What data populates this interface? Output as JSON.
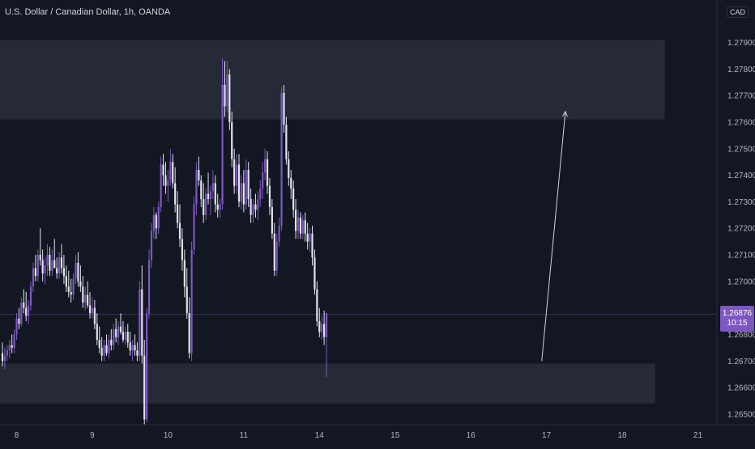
{
  "header": {
    "title": "U.S. Dollar / Canadian Dollar, 1h, OANDA",
    "currency": "CAD"
  },
  "price_badge": {
    "price": "1.26876",
    "countdown": "10:15"
  },
  "colors": {
    "background": "#131722",
    "up": "#7e57c2",
    "down": "#e0e3eb",
    "zone": "#2a2e39",
    "axis_text": "#b2b5be",
    "arrow": "#d1d4dc"
  },
  "chart_data": {
    "type": "candlestick",
    "title": "U.S. Dollar / Canadian Dollar, 1h, OANDA",
    "y_axis": {
      "ticks": [
        "1.26500",
        "1.26600",
        "1.26700",
        "1.26800",
        "1.27000",
        "1.27100",
        "1.27200",
        "1.27300",
        "1.27400",
        "1.27500",
        "1.27600",
        "1.27700",
        "1.27800",
        "1.27900"
      ],
      "tick_values": [
        1.265,
        1.266,
        1.267,
        1.268,
        1.27,
        1.271,
        1.272,
        1.273,
        1.274,
        1.275,
        1.276,
        1.277,
        1.278,
        1.279
      ],
      "range": [
        1.2646,
        1.2806
      ]
    },
    "x_axis": {
      "labels": [
        "8",
        "9",
        "10",
        "11",
        "14",
        "15",
        "16",
        "17",
        "18",
        "21"
      ],
      "label_index": [
        6,
        38,
        70,
        102,
        134,
        166,
        198,
        230,
        262,
        294
      ]
    },
    "zones": [
      {
        "low": 1.2761,
        "high": 1.2791,
        "end_index": 280
      },
      {
        "low": 1.2654,
        "high": 1.2669,
        "end_index": 276
      }
    ],
    "arrow": {
      "from": {
        "index": 228,
        "price": 1.267
      },
      "to": {
        "index": 238,
        "price": 1.2764
      }
    },
    "current_price": 1.26876,
    "candles": [
      [
        1.2673,
        1.2677,
        1.2668,
        1.267
      ],
      [
        1.267,
        1.2675,
        1.2667,
        1.2672
      ],
      [
        1.2672,
        1.2676,
        1.267,
        1.2674
      ],
      [
        1.2674,
        1.2678,
        1.2671,
        1.2676
      ],
      [
        1.2676,
        1.268,
        1.2673,
        1.2675
      ],
      [
        1.2675,
        1.2682,
        1.2673,
        1.268
      ],
      [
        1.268,
        1.2688,
        1.2678,
        1.2686
      ],
      [
        1.2686,
        1.269,
        1.2682,
        1.2684
      ],
      [
        1.2684,
        1.2694,
        1.2683,
        1.2692
      ],
      [
        1.2692,
        1.2697,
        1.2688,
        1.269
      ],
      [
        1.269,
        1.2696,
        1.2685,
        1.2687
      ],
      [
        1.2687,
        1.2693,
        1.2684,
        1.2691
      ],
      [
        1.2691,
        1.27,
        1.2689,
        1.2698
      ],
      [
        1.2698,
        1.2707,
        1.2696,
        1.2705
      ],
      [
        1.2705,
        1.271,
        1.27,
        1.2702
      ],
      [
        1.2702,
        1.2712,
        1.27,
        1.271
      ],
      [
        1.271,
        1.272,
        1.2706,
        1.2708
      ],
      [
        1.2708,
        1.2712,
        1.27,
        1.2703
      ],
      [
        1.2703,
        1.2709,
        1.2699,
        1.2706
      ],
      [
        1.2706,
        1.2714,
        1.2702,
        1.271
      ],
      [
        1.271,
        1.2713,
        1.2702,
        1.2704
      ],
      [
        1.2704,
        1.2712,
        1.2702,
        1.2708
      ],
      [
        1.2708,
        1.2716,
        1.2706,
        1.2705
      ],
      [
        1.2705,
        1.2709,
        1.2701,
        1.2703
      ],
      [
        1.2703,
        1.2711,
        1.2701,
        1.2709
      ],
      [
        1.2709,
        1.2714,
        1.2703,
        1.2705
      ],
      [
        1.2705,
        1.271,
        1.2699,
        1.2702
      ],
      [
        1.2702,
        1.2706,
        1.2696,
        1.2698
      ],
      [
        1.2698,
        1.2704,
        1.2694,
        1.2696
      ],
      [
        1.2696,
        1.2701,
        1.2692,
        1.2695
      ],
      [
        1.2695,
        1.2703,
        1.2693,
        1.2701
      ],
      [
        1.2701,
        1.271,
        1.2699,
        1.2707
      ],
      [
        1.2707,
        1.2711,
        1.2698,
        1.27
      ],
      [
        1.27,
        1.2706,
        1.2696,
        1.2698
      ],
      [
        1.2698,
        1.2702,
        1.269,
        1.2692
      ],
      [
        1.2692,
        1.2698,
        1.2689,
        1.2695
      ],
      [
        1.2695,
        1.27,
        1.269,
        1.2691
      ],
      [
        1.2691,
        1.2696,
        1.2686,
        1.2688
      ],
      [
        1.2688,
        1.2694,
        1.2686,
        1.269
      ],
      [
        1.269,
        1.2693,
        1.2682,
        1.2684
      ],
      [
        1.2684,
        1.2688,
        1.2676,
        1.2678
      ],
      [
        1.2678,
        1.2683,
        1.2673,
        1.2675
      ],
      [
        1.2675,
        1.2679,
        1.267,
        1.2672
      ],
      [
        1.2672,
        1.2678,
        1.267,
        1.2676
      ],
      [
        1.2676,
        1.268,
        1.2672,
        1.2673
      ],
      [
        1.2673,
        1.268,
        1.2671,
        1.2678
      ],
      [
        1.2678,
        1.2682,
        1.2674,
        1.2676
      ],
      [
        1.2676,
        1.2684,
        1.2674,
        1.2682
      ],
      [
        1.2682,
        1.2686,
        1.2677,
        1.2679
      ],
      [
        1.2679,
        1.2685,
        1.2676,
        1.2683
      ],
      [
        1.2683,
        1.2688,
        1.268,
        1.2681
      ],
      [
        1.2681,
        1.2685,
        1.2677,
        1.2678
      ],
      [
        1.2678,
        1.2683,
        1.2676,
        1.2681
      ],
      [
        1.2681,
        1.2684,
        1.2675,
        1.2677
      ],
      [
        1.2677,
        1.2681,
        1.2672,
        1.2674
      ],
      [
        1.2674,
        1.2678,
        1.267,
        1.2676
      ],
      [
        1.2676,
        1.268,
        1.2672,
        1.2674
      ],
      [
        1.2674,
        1.2677,
        1.267,
        1.2672
      ],
      [
        1.2672,
        1.27,
        1.267,
        1.2697
      ],
      [
        1.2697,
        1.2706,
        1.2669,
        1.2672
      ],
      [
        1.2672,
        1.2678,
        1.2646,
        1.2648
      ],
      [
        1.2648,
        1.269,
        1.2647,
        1.2688
      ],
      [
        1.2688,
        1.2712,
        1.2686,
        1.2708
      ],
      [
        1.2708,
        1.2722,
        1.2705,
        1.2719
      ],
      [
        1.2719,
        1.2728,
        1.2716,
        1.2725
      ],
      [
        1.2725,
        1.2726,
        1.2716,
        1.272
      ],
      [
        1.272,
        1.273,
        1.2718,
        1.2728
      ],
      [
        1.2728,
        1.2747,
        1.2726,
        1.2744
      ],
      [
        1.2744,
        1.2748,
        1.2736,
        1.274
      ],
      [
        1.274,
        1.2745,
        1.2733,
        1.2736
      ],
      [
        1.2736,
        1.2742,
        1.273,
        1.2738
      ],
      [
        1.2738,
        1.275,
        1.2736,
        1.2745
      ],
      [
        1.2745,
        1.2748,
        1.2735,
        1.2737
      ],
      [
        1.2737,
        1.2743,
        1.2726,
        1.2729
      ],
      [
        1.2729,
        1.2734,
        1.272,
        1.2722
      ],
      [
        1.2722,
        1.2729,
        1.2713,
        1.2716
      ],
      [
        1.2716,
        1.272,
        1.2704,
        1.2708
      ],
      [
        1.2708,
        1.2712,
        1.2694,
        1.2698
      ],
      [
        1.2698,
        1.2705,
        1.2686,
        1.2688
      ],
      [
        1.2688,
        1.2694,
        1.2671,
        1.2673
      ],
      [
        1.2673,
        1.2715,
        1.267,
        1.2712
      ],
      [
        1.2712,
        1.2732,
        1.271,
        1.2729
      ],
      [
        1.2729,
        1.2745,
        1.2725,
        1.2742
      ],
      [
        1.2742,
        1.2747,
        1.2736,
        1.2738
      ],
      [
        1.2738,
        1.274,
        1.2728,
        1.2731
      ],
      [
        1.2731,
        1.2737,
        1.2722,
        1.2725
      ],
      [
        1.2725,
        1.2735,
        1.2723,
        1.2733
      ],
      [
        1.2733,
        1.2741,
        1.2729,
        1.2731
      ],
      [
        1.2731,
        1.2736,
        1.2725,
        1.2734
      ],
      [
        1.2734,
        1.2742,
        1.2731,
        1.2737
      ],
      [
        1.2737,
        1.274,
        1.2726,
        1.2729
      ],
      [
        1.2729,
        1.2733,
        1.2724,
        1.2727
      ],
      [
        1.2727,
        1.2731,
        1.2724,
        1.2729
      ],
      [
        1.2729,
        1.2784,
        1.2727,
        1.2774
      ],
      [
        1.2774,
        1.2783,
        1.2762,
        1.2766
      ],
      [
        1.2766,
        1.2783,
        1.2764,
        1.2778
      ],
      [
        1.2778,
        1.278,
        1.2757,
        1.276
      ],
      [
        1.276,
        1.2764,
        1.2743,
        1.2746
      ],
      [
        1.2746,
        1.275,
        1.2733,
        1.2736
      ],
      [
        1.2736,
        1.2748,
        1.2733,
        1.2744
      ],
      [
        1.2744,
        1.2748,
        1.2728,
        1.273
      ],
      [
        1.273,
        1.274,
        1.2727,
        1.2737
      ],
      [
        1.2737,
        1.2742,
        1.2726,
        1.2729
      ],
      [
        1.2729,
        1.2746,
        1.2727,
        1.2742
      ],
      [
        1.2742,
        1.2745,
        1.2728,
        1.2731
      ],
      [
        1.2731,
        1.2735,
        1.2722,
        1.2725
      ],
      [
        1.2725,
        1.2731,
        1.2722,
        1.2729
      ],
      [
        1.2729,
        1.2733,
        1.2724,
        1.2727
      ],
      [
        1.2727,
        1.2734,
        1.2723,
        1.2731
      ],
      [
        1.2731,
        1.2738,
        1.2728,
        1.2735
      ],
      [
        1.2735,
        1.2745,
        1.2731,
        1.2741
      ],
      [
        1.2741,
        1.275,
        1.2738,
        1.2746
      ],
      [
        1.2746,
        1.2749,
        1.2733,
        1.2736
      ],
      [
        1.2736,
        1.2739,
        1.2725,
        1.2728
      ],
      [
        1.2728,
        1.2731,
        1.2716,
        1.2718
      ],
      [
        1.2718,
        1.2722,
        1.2702,
        1.2704
      ],
      [
        1.2704,
        1.2718,
        1.2702,
        1.2715
      ],
      [
        1.2715,
        1.2724,
        1.2713,
        1.2721
      ],
      [
        1.2721,
        1.2773,
        1.2719,
        1.2771
      ],
      [
        1.2771,
        1.2774,
        1.2756,
        1.2759
      ],
      [
        1.2759,
        1.2762,
        1.2744,
        1.2746
      ],
      [
        1.2746,
        1.2749,
        1.2736,
        1.2739
      ],
      [
        1.2739,
        1.2742,
        1.2731,
        1.2735
      ],
      [
        1.2735,
        1.2738,
        1.2724,
        1.2727
      ],
      [
        1.2727,
        1.2731,
        1.2716,
        1.2719
      ],
      [
        1.2719,
        1.2727,
        1.2716,
        1.2724
      ],
      [
        1.2724,
        1.2726,
        1.2716,
        1.2718
      ],
      [
        1.2718,
        1.2725,
        1.2716,
        1.2723
      ],
      [
        1.2723,
        1.2726,
        1.2715,
        1.2718
      ],
      [
        1.2718,
        1.2722,
        1.2712,
        1.2715
      ],
      [
        1.2715,
        1.272,
        1.2711,
        1.2718
      ],
      [
        1.2718,
        1.2721,
        1.2706,
        1.2709
      ],
      [
        1.2709,
        1.2712,
        1.2695,
        1.2697
      ],
      [
        1.2697,
        1.27,
        1.2683,
        1.2685
      ],
      [
        1.2685,
        1.269,
        1.2679,
        1.2681
      ],
      [
        1.2681,
        1.2687,
        1.2678,
        1.2684
      ],
      [
        1.2684,
        1.2689,
        1.2676,
        1.2679
      ],
      [
        1.2679,
        1.2688,
        1.2664,
        1.2688
      ]
    ]
  }
}
